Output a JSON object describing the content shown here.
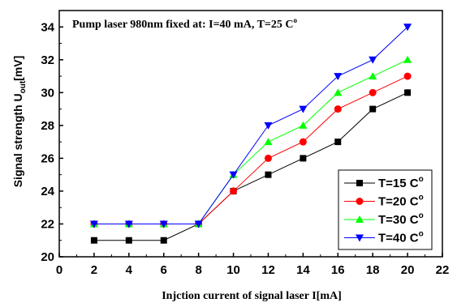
{
  "chart_data": {
    "type": "line",
    "title": "",
    "annotation": {
      "text": "Pump laser 980nm fixed at: I=40 mA, T=25 C",
      "sup": "o"
    },
    "xlabel": "Injction current of signal laser I[mA]",
    "ylabel": {
      "main": "Signal strength U",
      "sub": "out",
      "unit": "[mV]"
    },
    "xlim": [
      0,
      22
    ],
    "ylim": [
      20,
      35
    ],
    "xticks": [
      0,
      2,
      4,
      6,
      8,
      10,
      12,
      14,
      16,
      18,
      20,
      22
    ],
    "yticks": [
      20,
      22,
      24,
      26,
      28,
      30,
      32,
      34
    ],
    "grid": false,
    "legend_position": "bottom-right",
    "x": [
      2,
      4,
      6,
      8,
      10,
      12,
      14,
      16,
      18,
      20
    ],
    "series": [
      {
        "name": "T=15 C",
        "sup": "o",
        "color": "#000000",
        "marker": "square",
        "values": [
          21,
          21,
          21,
          22,
          24,
          25,
          26,
          27,
          29,
          30
        ]
      },
      {
        "name": "T=20 C",
        "sup": "o",
        "color": "#ff0000",
        "marker": "circle",
        "values": [
          22,
          22,
          22,
          22,
          24,
          26,
          27,
          29,
          30,
          31
        ]
      },
      {
        "name": "T=30 C",
        "sup": "o",
        "color": "#00ff00",
        "marker": "triangle-up",
        "values": [
          22,
          22,
          22,
          22,
          25,
          27,
          28,
          30,
          31,
          32
        ]
      },
      {
        "name": "T=40 C",
        "sup": "o",
        "color": "#0000ff",
        "marker": "triangle-down",
        "values": [
          22,
          22,
          22,
          22,
          25,
          28,
          29,
          31,
          32,
          34
        ]
      }
    ]
  }
}
